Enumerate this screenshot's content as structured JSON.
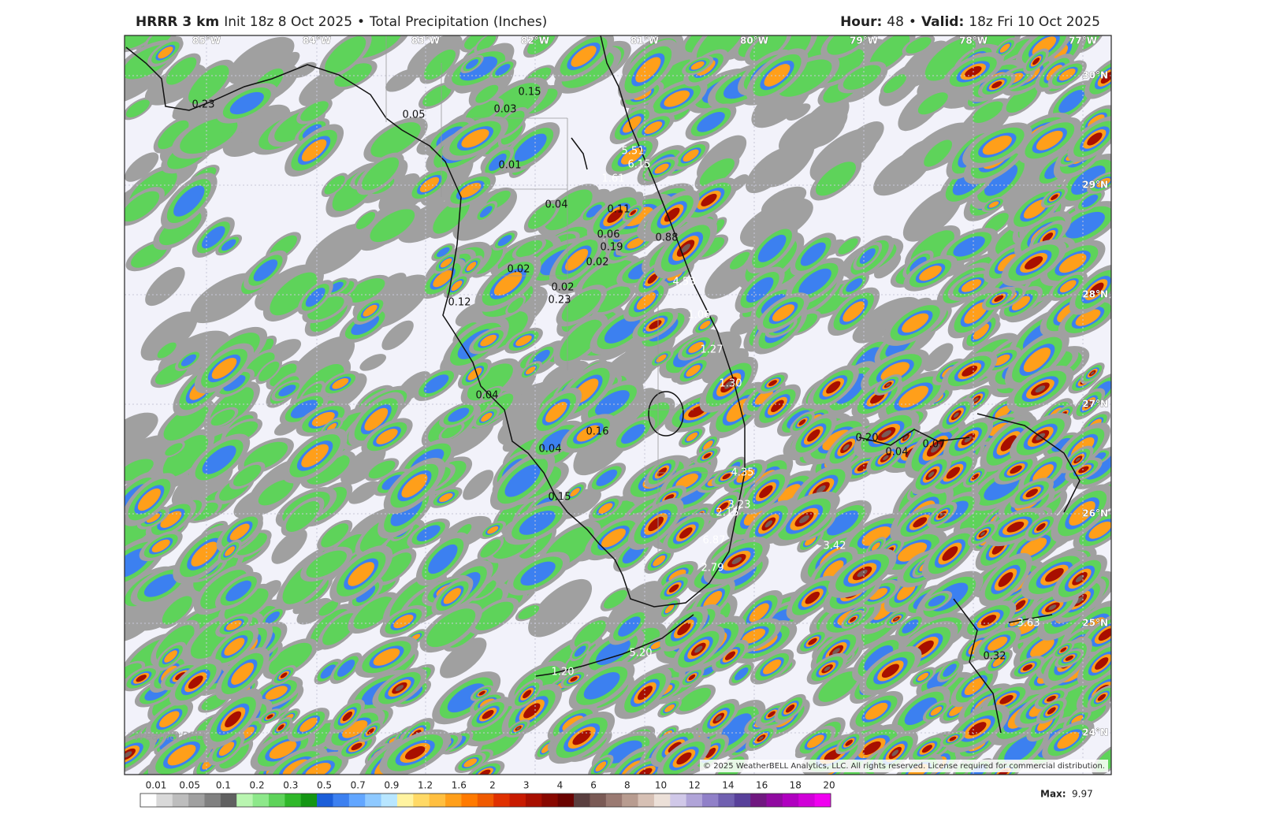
{
  "header": {
    "model": "HRRR 3 km",
    "init": "Init 18z 8 Oct 2025",
    "separator": "•",
    "product": "Total Precipitation (Inches)",
    "hour_label": "Hour:",
    "hour": "48",
    "valid_label": "Valid:",
    "valid": "18z Fri 10 Oct 2025"
  },
  "map": {
    "longitudes": [
      "85°W",
      "84°W",
      "83°W",
      "82°W",
      "81°W",
      "80°W",
      "79°W",
      "78°W",
      "77°W"
    ],
    "latitudes": [
      "30°N",
      "29°N",
      "28°N",
      "27°N",
      "26°N",
      "25°N",
      "24°N"
    ],
    "values": [
      "0.15",
      "0.03",
      "0.05",
      "0.23",
      "0.01",
      "5.51",
      "6.15",
      "1.61",
      "0.04",
      "0.11",
      "0.06",
      "0.19",
      "0.88",
      "0.02",
      "0.02",
      "0.02",
      "0.23",
      "4.53",
      "0.12",
      "1.06",
      "1.27",
      "0.04",
      "1.30",
      "0.16",
      "0.20",
      "0.04",
      "0.07",
      "0.04",
      "4.35",
      "3.23",
      "2.15",
      "0.15",
      "6.87",
      "3.42",
      "2.79",
      "3.63",
      "5.20",
      "0.32",
      "1.20"
    ],
    "logo": "WeatherBELL",
    "copyright": "© 2025 WeatherBELL Analytics, LLC. All rights reserved. License required for commercial distribution."
  },
  "legend": {
    "levels": [
      "0.01",
      "0.05",
      "0.1",
      "0.2",
      "0.3",
      "0.5",
      "0.7",
      "0.9",
      "1.2",
      "1.6",
      "2",
      "3",
      "4",
      "6",
      "8",
      "10",
      "12",
      "14",
      "16",
      "18",
      "20"
    ],
    "colors": [
      "#ffffff",
      "#d9d9d9",
      "#bdbdbd",
      "#a0a0a0",
      "#808080",
      "#606060",
      "#b9f5b0",
      "#8de88a",
      "#5ed35a",
      "#2fb82a",
      "#149614",
      "#1b5ed9",
      "#3c80f0",
      "#62a6ff",
      "#8ec9ff",
      "#b8e6ff",
      "#fff3a0",
      "#ffd966",
      "#ffbf40",
      "#ff9f1a",
      "#ff7a00",
      "#f05a00",
      "#e03000",
      "#c81a00",
      "#a80f00",
      "#880800",
      "#6a0300",
      "#5a3f3f",
      "#7a5a55",
      "#9a7a72",
      "#b89c90",
      "#d6c0b4",
      "#ece0d8",
      "#d0c8e8",
      "#b0a4d8",
      "#9080c8",
      "#7060b0",
      "#58409a",
      "#701880",
      "#900aa0",
      "#b000c0",
      "#d000d8",
      "#f000f0"
    ],
    "max_label": "Max:",
    "max": "9.97"
  }
}
